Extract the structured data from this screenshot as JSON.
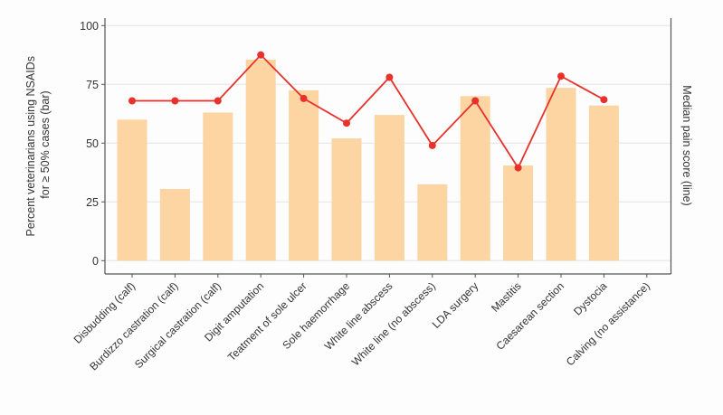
{
  "chart_data": {
    "type": "bar",
    "categories": [
      "Disbudding (calf)",
      "Burdizzo castration (calf)",
      "Surgical castration (calf)",
      "Digit amputation",
      "Teatment of sole ulcer",
      "Sole haemorrhage",
      "White line abscess",
      "White line (no abscess)",
      "LDA surgery",
      "Mastitis",
      "Caesarean section",
      "Dystocia",
      "Calving (no assistance)"
    ],
    "series": [
      {
        "type": "bar",
        "axis": "left",
        "color": "#fcd5a3",
        "values": [
          60,
          30.5,
          63,
          85.5,
          72.5,
          52,
          62,
          32.5,
          70,
          40.5,
          73.5,
          66,
          null
        ]
      },
      {
        "type": "line",
        "axis": "right",
        "color": "#e8312a",
        "values": [
          68,
          68,
          68,
          87.5,
          69,
          58.5,
          78,
          49,
          68,
          39.5,
          78.5,
          68.5,
          null
        ]
      }
    ],
    "ylabel_left": [
      "Percent veterinarians using NSAIDs",
      "for ≥ 50% cases (bar)"
    ],
    "ylabel_right": "Median pain score (line)",
    "yticks": [
      "0",
      "25",
      "50",
      "75",
      "100"
    ],
    "ylim": [
      0,
      100
    ],
    "grid": true
  }
}
